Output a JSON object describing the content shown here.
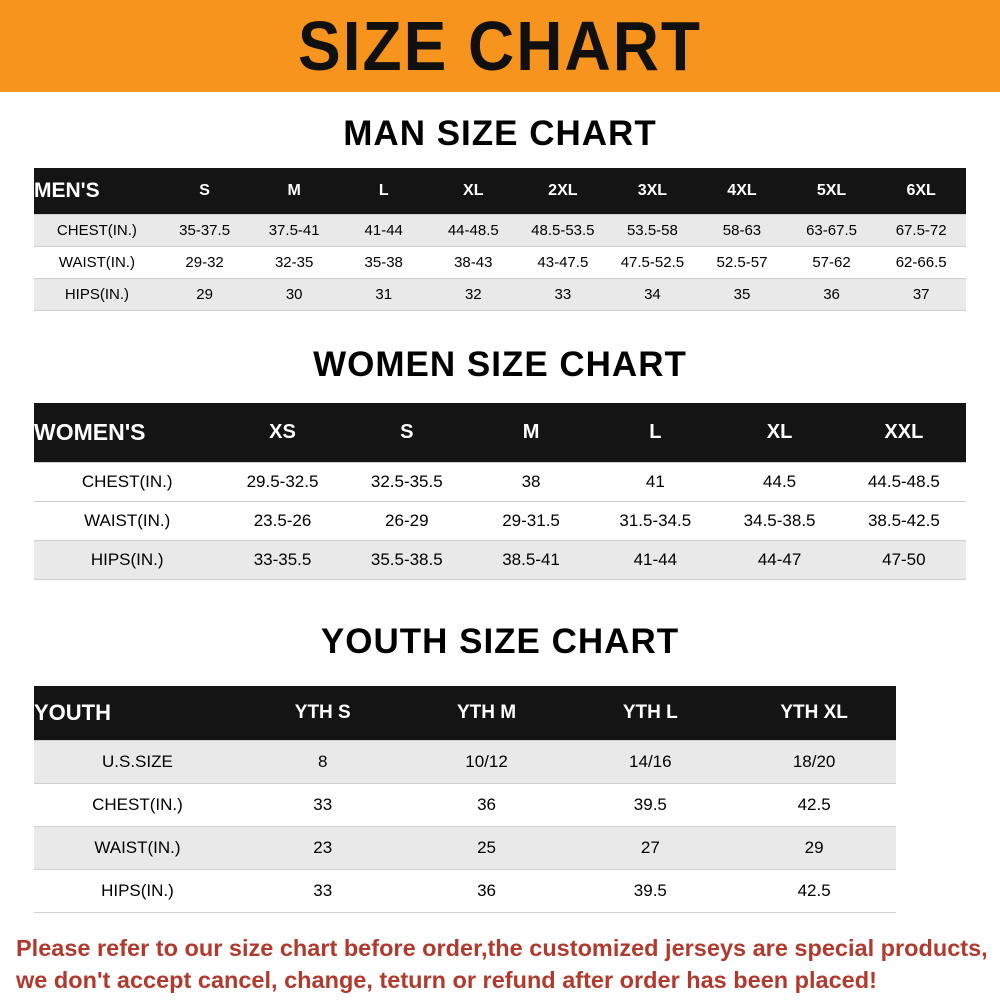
{
  "banner": {
    "title": "SIZE CHART"
  },
  "sections": [
    {
      "id": "men",
      "title": "MAN SIZE CHART",
      "header": [
        "MEN'S",
        "S",
        "M",
        "L",
        "XL",
        "2XL",
        "3XL",
        "4XL",
        "5XL",
        "6XL"
      ],
      "rows": [
        [
          "CHEST(IN.)",
          "35-37.5",
          "37.5-41",
          "41-44",
          "44-48.5",
          "48.5-53.5",
          "53.5-58",
          "58-63",
          "63-67.5",
          "67.5-72"
        ],
        [
          "WAIST(IN.)",
          "29-32",
          "32-35",
          "35-38",
          "38-43",
          "43-47.5",
          "47.5-52.5",
          "52.5-57",
          "57-62",
          "62-66.5"
        ],
        [
          "HIPS(IN.)",
          "29",
          "30",
          "31",
          "32",
          "33",
          "34",
          "35",
          "36",
          "37"
        ]
      ]
    },
    {
      "id": "women",
      "title": "WOMEN SIZE CHART",
      "header": [
        "WOMEN'S",
        "XS",
        "S",
        "M",
        "L",
        "XL",
        "XXL"
      ],
      "rows": [
        [
          "CHEST(IN.)",
          "29.5-32.5",
          "32.5-35.5",
          "38",
          "41",
          "44.5",
          "44.5-48.5"
        ],
        [
          "WAIST(IN.)",
          "23.5-26",
          "26-29",
          "29-31.5",
          "31.5-34.5",
          "34.5-38.5",
          "38.5-42.5"
        ],
        [
          "HIPS(IN.)",
          "33-35.5",
          "35.5-38.5",
          "38.5-41",
          "41-44",
          "44-47",
          "47-50"
        ]
      ]
    },
    {
      "id": "youth",
      "title": "YOUTH SIZE CHART",
      "header": [
        "YOUTH",
        "YTH S",
        "YTH M",
        "YTH L",
        "YTH XL"
      ],
      "rows": [
        [
          "U.S.SIZE",
          "8",
          "10/12",
          "14/16",
          "18/20"
        ],
        [
          "CHEST(IN.)",
          "33",
          "36",
          "39.5",
          "42.5"
        ],
        [
          "WAIST(IN.)",
          "23",
          "25",
          "27",
          "29"
        ],
        [
          "HIPS(IN.)",
          "33",
          "36",
          "39.5",
          "42.5"
        ]
      ]
    }
  ],
  "footer": {
    "line1": "Please refer to our size chart before order,the customized jerseys are special products,",
    "line2": "we don't accept cancel, change, teturn or refund after order has been placed!"
  },
  "colors": {
    "banner_orange": "#f7941d",
    "table_header_black": "#141414",
    "row_stripe_gray": "#e9e9e9",
    "disclaimer_red": "#b03a2e"
  }
}
